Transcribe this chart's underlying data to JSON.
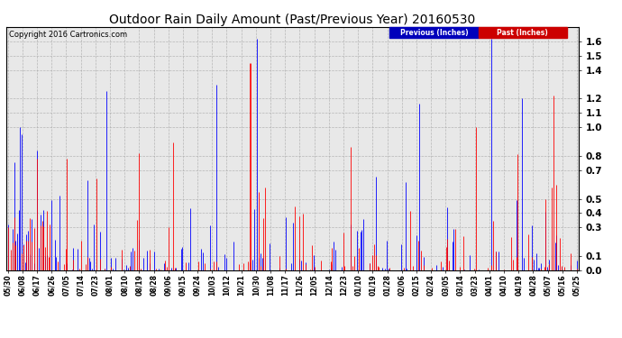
{
  "title": "Outdoor Rain Daily Amount (Past/Previous Year) 20160530",
  "copyright": "Copyright 2016 Cartronics.com",
  "legend_previous": "Previous (Inches)",
  "legend_past": "Past (Inches)",
  "legend_previous_color": "#0000ff",
  "legend_past_color": "#ff0000",
  "legend_previous_bg": "#0000bb",
  "legend_past_bg": "#cc0000",
  "ymin": 0.0,
  "ymax": 1.7,
  "yticks": [
    0.0,
    0.1,
    0.3,
    0.4,
    0.5,
    0.7,
    0.8,
    1.0,
    1.1,
    1.2,
    1.4,
    1.5,
    1.6
  ],
  "bg_color": "#ffffff",
  "plot_bg_color": "#e8e8e8",
  "grid_color": "#aaaaaa",
  "x_labels": [
    "05/30",
    "06/08",
    "06/17",
    "06/26",
    "07/05",
    "07/14",
    "07/23",
    "08/01",
    "08/10",
    "08/19",
    "08/28",
    "09/06",
    "09/15",
    "09/24",
    "10/03",
    "10/12",
    "10/21",
    "10/30",
    "11/08",
    "11/17",
    "11/26",
    "12/05",
    "12/14",
    "12/23",
    "01/10",
    "01/19",
    "01/28",
    "02/06",
    "02/15",
    "02/24",
    "03/05",
    "03/14",
    "03/23",
    "04/01",
    "04/10",
    "04/19",
    "04/28",
    "05/07",
    "05/16",
    "05/25"
  ],
  "n_points": 366
}
